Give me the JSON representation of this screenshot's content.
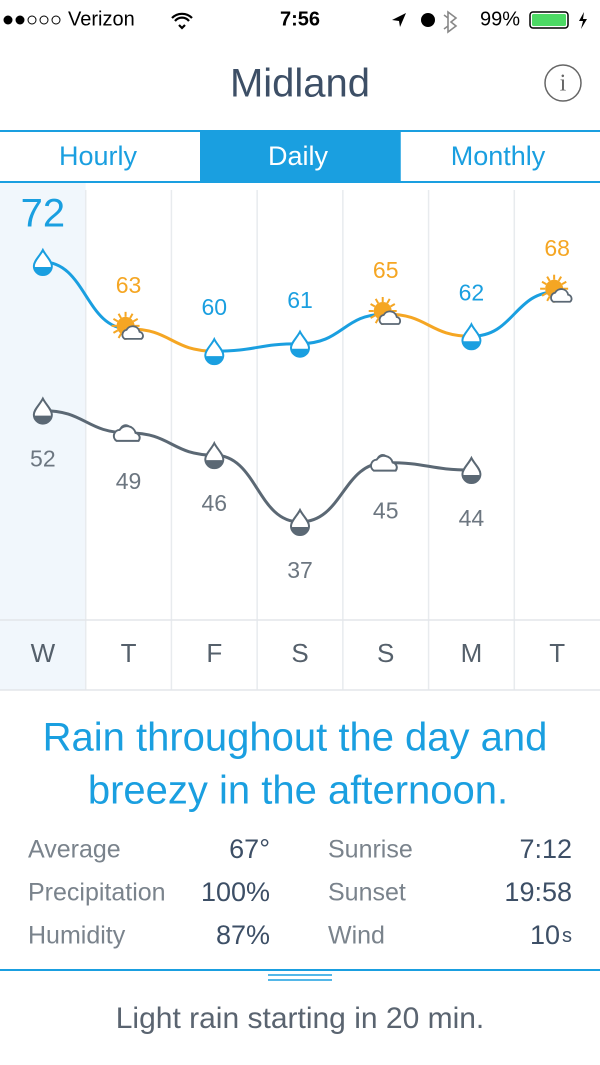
{
  "status": {
    "carrier": "Verizon",
    "time": "7:56",
    "battery": "99%"
  },
  "header": {
    "title": "Midland"
  },
  "tabs": [
    {
      "label": "Hourly"
    },
    {
      "label": "Daily",
      "selected": true
    },
    {
      "label": "Monthly"
    }
  ],
  "forecast": {
    "days": [
      "W",
      "T",
      "F",
      "S",
      "S",
      "M",
      "T"
    ],
    "highs": [
      72,
      63,
      60,
      61,
      65,
      62,
      68
    ],
    "high_conditions": [
      "rain",
      "sun",
      "rain",
      "rain",
      "sun",
      "rain",
      "sun"
    ],
    "lows": [
      52,
      49,
      46,
      37,
      45,
      44,
      null
    ],
    "low_conditions": [
      "rain",
      "cloud",
      "rain",
      "rain",
      "cloud",
      "rain",
      null
    ],
    "selected_day": 0
  },
  "summary": {
    "lines": [
      "Rain throughout the day and",
      "breezy in the afternoon."
    ]
  },
  "stats": {
    "left": [
      {
        "label": "Average",
        "value": "67°"
      },
      {
        "label": "Precipitation",
        "value": "100%"
      },
      {
        "label": "Humidity",
        "value": "87%"
      }
    ],
    "right": [
      {
        "label": "Sunrise",
        "value": "7:12"
      },
      {
        "label": "Sunset",
        "value": "19:58"
      },
      {
        "label": "Wind",
        "value": "10",
        "unit": "s"
      }
    ]
  },
  "footer": {
    "text": "Light rain starting in 20 min."
  }
}
